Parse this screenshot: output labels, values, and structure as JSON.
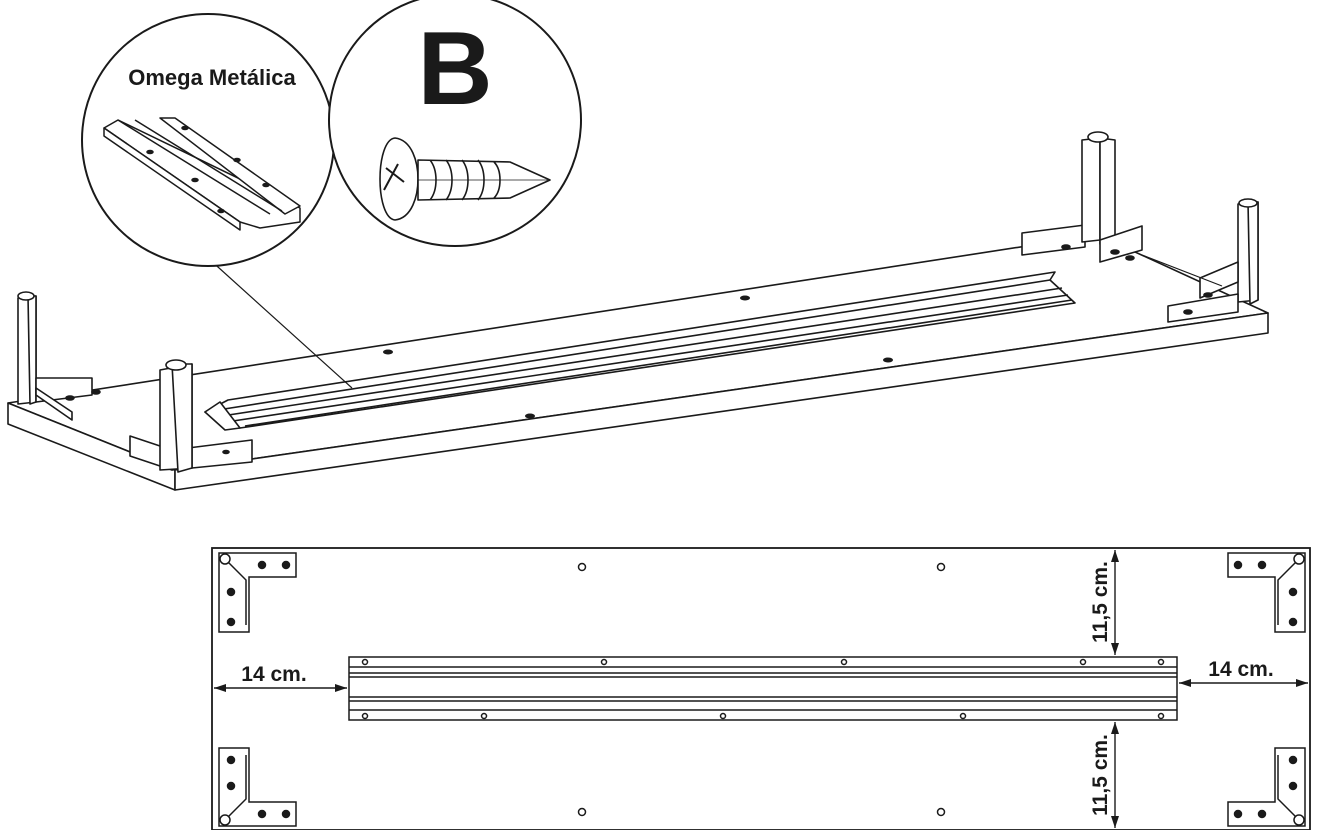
{
  "callouts": {
    "part_label": "Omega Metálica",
    "screw_letter": "B"
  },
  "dimensions": {
    "left": "14 cm.",
    "right": "14 cm.",
    "top": "11,5 cm.",
    "bottom": "11,5 cm."
  },
  "colors": {
    "line": "#1a1a1a",
    "fill": "#ffffff"
  }
}
